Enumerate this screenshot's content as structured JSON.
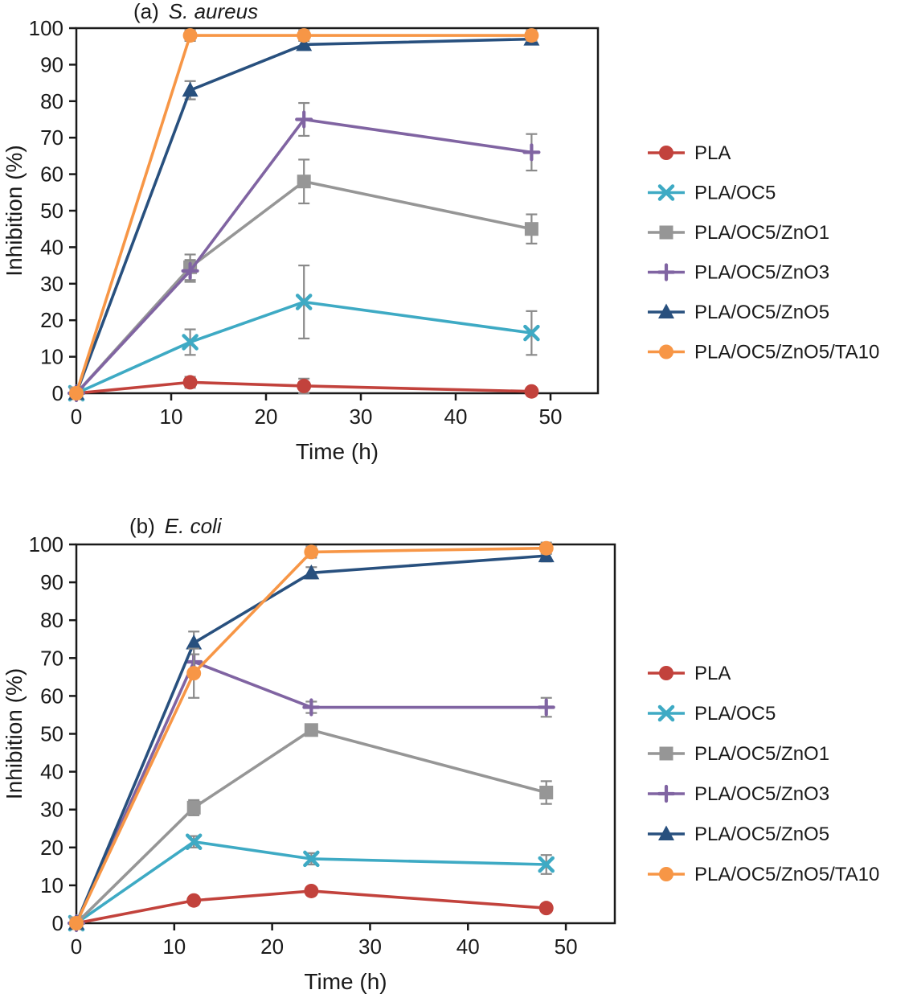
{
  "figure": {
    "background": "#ffffff",
    "axis_color": "#1a1a1a",
    "error_bar_color": "#8a8a8a"
  },
  "chart_data": [
    {
      "id": "a",
      "type": "line",
      "title_prefix": "(a)",
      "title_italic": "S. aureus",
      "xlabel": "Time (h)",
      "ylabel": "Inhibition (%)",
      "xlim": [
        0,
        55
      ],
      "ylim": [
        0,
        100
      ],
      "xticks": [
        0,
        10,
        20,
        30,
        40,
        50
      ],
      "yticks": [
        0,
        10,
        20,
        30,
        40,
        50,
        60,
        70,
        80,
        90,
        100
      ],
      "grid": false,
      "legend_position": "right",
      "x": [
        0,
        12,
        24,
        48
      ],
      "series": [
        {
          "name": "PLA",
          "marker": "circle",
          "color": "#c2423c",
          "values": [
            0,
            3,
            2,
            0.5
          ],
          "errors": [
            0,
            1.5,
            2,
            1
          ]
        },
        {
          "name": "PLA/OC5",
          "marker": "x",
          "color": "#3eaac4",
          "values": [
            0,
            14,
            25,
            16.5
          ],
          "errors": [
            0,
            3.5,
            10,
            6
          ]
        },
        {
          "name": "PLA/OC5/ZnO1",
          "marker": "square",
          "color": "#969696",
          "values": [
            0,
            34.5,
            58,
            45
          ],
          "errors": [
            0,
            3.5,
            6,
            4
          ]
        },
        {
          "name": "PLA/OC5/ZnO3",
          "marker": "plus",
          "color": "#8064a2",
          "values": [
            0,
            33.5,
            75,
            66
          ],
          "errors": [
            0,
            3,
            4.5,
            5
          ]
        },
        {
          "name": "PLA/OC5/ZnO5",
          "marker": "triangle",
          "color": "#28507e",
          "values": [
            0,
            83,
            95.5,
            97
          ],
          "errors": [
            0,
            2.5,
            1.5,
            1.5
          ]
        },
        {
          "name": "PLA/OC5/ZnO5/TA10",
          "marker": "circle",
          "color": "#f79646",
          "values": [
            0,
            98,
            98,
            98
          ],
          "errors": [
            0,
            1.5,
            1.5,
            1.5
          ]
        }
      ]
    },
    {
      "id": "b",
      "type": "line",
      "title_prefix": "(b)",
      "title_italic": "E. coli",
      "xlabel": "Time (h)",
      "ylabel": "Inhibition (%)",
      "xlim": [
        0,
        55
      ],
      "ylim": [
        0,
        100
      ],
      "xticks": [
        0,
        10,
        20,
        30,
        40,
        50
      ],
      "yticks": [
        0,
        10,
        20,
        30,
        40,
        50,
        60,
        70,
        80,
        90,
        100
      ],
      "grid": false,
      "legend_position": "right",
      "x": [
        0,
        12,
        24,
        48
      ],
      "series": [
        {
          "name": "PLA",
          "marker": "circle",
          "color": "#c2423c",
          "values": [
            0,
            6,
            8.5,
            4
          ],
          "errors": [
            0,
            1,
            1,
            1
          ]
        },
        {
          "name": "PLA/OC5",
          "marker": "x",
          "color": "#3eaac4",
          "values": [
            0,
            21.5,
            17,
            15.5
          ],
          "errors": [
            0,
            1.5,
            1.5,
            2.5
          ]
        },
        {
          "name": "PLA/OC5/ZnO1",
          "marker": "square",
          "color": "#969696",
          "values": [
            0,
            30.5,
            51,
            34.5
          ],
          "errors": [
            0,
            2,
            1.5,
            3
          ]
        },
        {
          "name": "PLA/OC5/ZnO3",
          "marker": "plus",
          "color": "#8064a2",
          "values": [
            0,
            69,
            57,
            57
          ],
          "errors": [
            0,
            4,
            1.5,
            2.5
          ]
        },
        {
          "name": "PLA/OC5/ZnO5",
          "marker": "triangle",
          "color": "#28507e",
          "values": [
            0,
            74,
            92.5,
            97
          ],
          "errors": [
            0,
            3,
            1.5,
            1.5
          ]
        },
        {
          "name": "PLA/OC5/ZnO5/TA10",
          "marker": "circle",
          "color": "#f79646",
          "values": [
            0,
            66,
            98,
            99
          ],
          "errors": [
            0,
            6.5,
            1.5,
            1.5
          ]
        }
      ]
    }
  ]
}
